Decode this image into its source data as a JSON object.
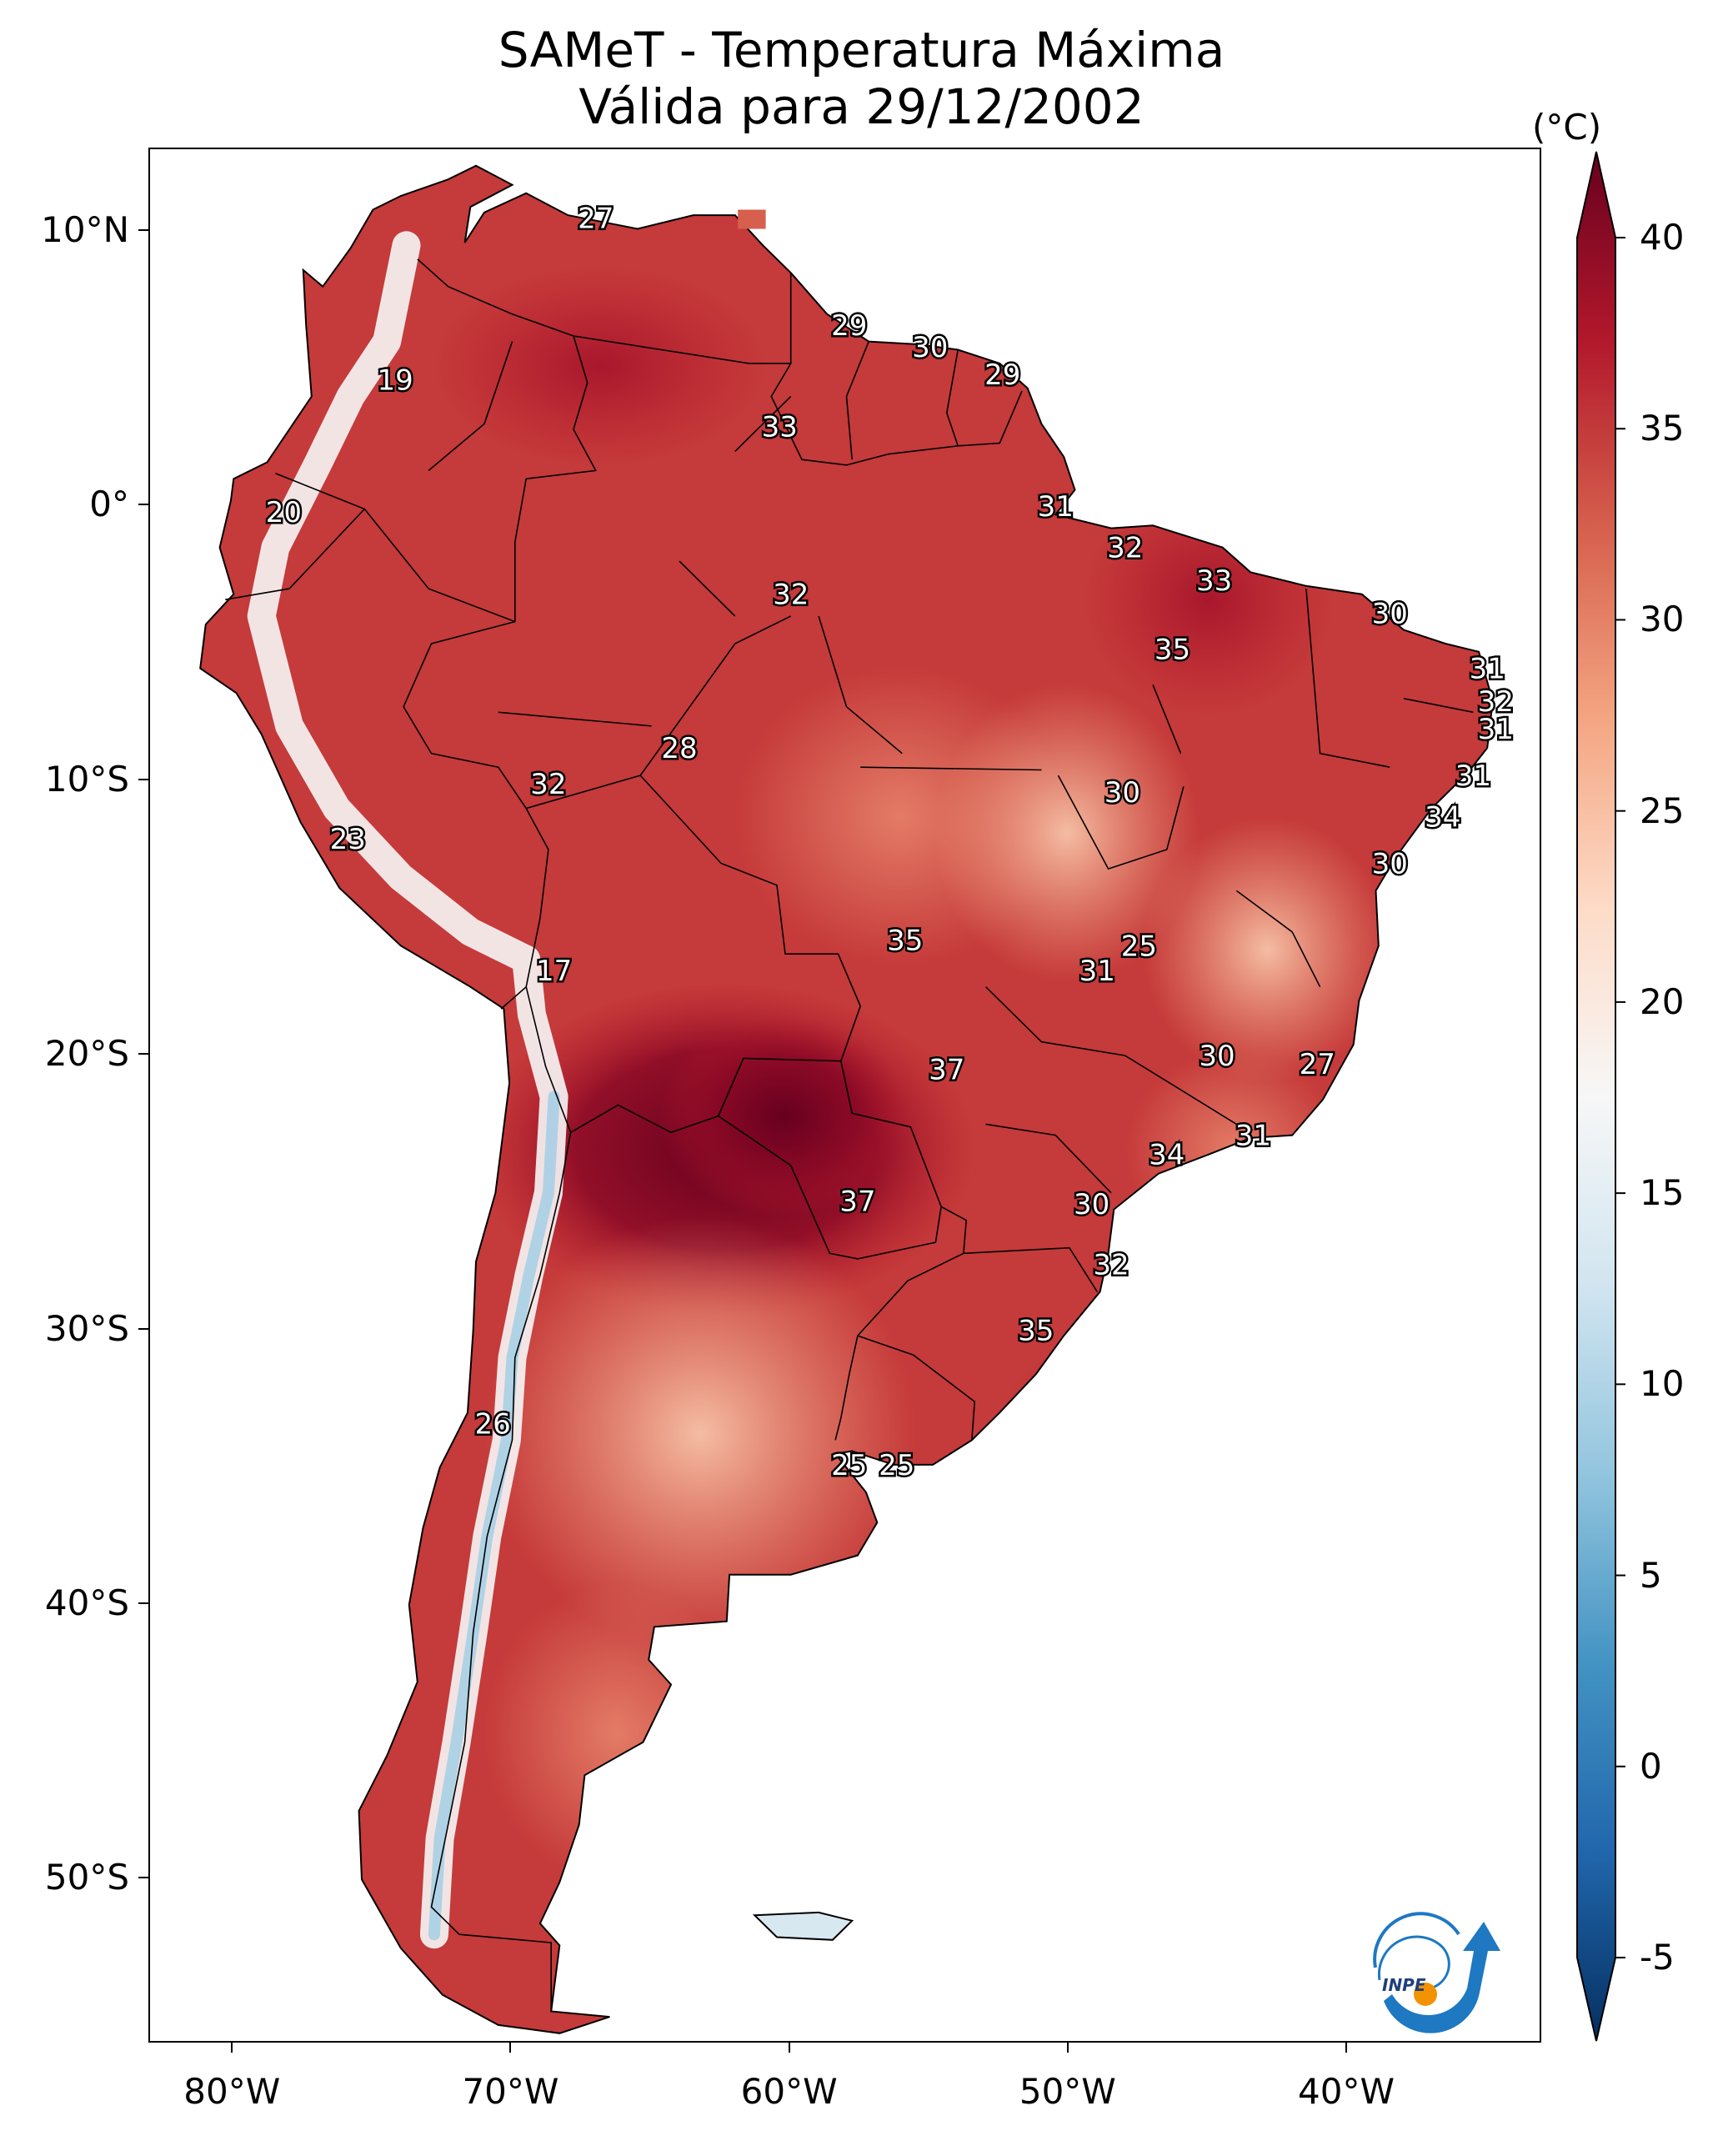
{
  "title": {
    "line1": "SAMeT - Temperatura Máxima",
    "line2": "Válida para 29/12/2002"
  },
  "map": {
    "type": "filled-temperature-map",
    "region": "South America",
    "lat_range": [
      -56,
      13
    ],
    "lon_range": [
      -83,
      -33
    ],
    "lat_ticks": [
      {
        "lat": 10,
        "label": "10°N"
      },
      {
        "lat": 0,
        "label": "0°"
      },
      {
        "lat": -10,
        "label": "10°S"
      },
      {
        "lat": -20,
        "label": "20°S"
      },
      {
        "lat": -30,
        "label": "30°S"
      },
      {
        "lat": -40,
        "label": "40°S"
      },
      {
        "lat": -50,
        "label": "50°S"
      }
    ],
    "lon_ticks": [
      {
        "lon": -80,
        "label": "80°W"
      },
      {
        "lon": -70,
        "label": "70°W"
      },
      {
        "lon": -60,
        "label": "60°W"
      },
      {
        "lon": -50,
        "label": "50°W"
      },
      {
        "lon": -40,
        "label": "40°W"
      }
    ],
    "contour_labels": [
      {
        "lat": 10.5,
        "lon": -67.0,
        "text": "27"
      },
      {
        "lat": 6.6,
        "lon": -57.9,
        "text": "29"
      },
      {
        "lat": 5.8,
        "lon": -55.0,
        "text": "30"
      },
      {
        "lat": 4.8,
        "lon": -52.4,
        "text": "29"
      },
      {
        "lat": 4.6,
        "lon": -74.2,
        "text": "19"
      },
      {
        "lat": 2.9,
        "lon": -60.4,
        "text": "33"
      },
      {
        "lat": 0.0,
        "lon": -50.5,
        "text": "31"
      },
      {
        "lat": -0.2,
        "lon": -78.2,
        "text": "20"
      },
      {
        "lat": -1.5,
        "lon": -48.0,
        "text": "32"
      },
      {
        "lat": -2.7,
        "lon": -44.8,
        "text": "33"
      },
      {
        "lat": -3.2,
        "lon": -60.0,
        "text": "32"
      },
      {
        "lat": -3.9,
        "lon": -38.5,
        "text": "30"
      },
      {
        "lat": -5.2,
        "lon": -46.3,
        "text": "35"
      },
      {
        "lat": -5.9,
        "lon": -35.0,
        "text": "31"
      },
      {
        "lat": -7.1,
        "lon": -34.7,
        "text": "32"
      },
      {
        "lat": -8.1,
        "lon": -34.7,
        "text": "31"
      },
      {
        "lat": -8.8,
        "lon": -64.0,
        "text": "28"
      },
      {
        "lat": -9.8,
        "lon": -35.5,
        "text": "31"
      },
      {
        "lat": -10.1,
        "lon": -68.7,
        "text": "32"
      },
      {
        "lat": -10.4,
        "lon": -48.1,
        "text": "30"
      },
      {
        "lat": -11.3,
        "lon": -36.6,
        "text": "34"
      },
      {
        "lat": -12.1,
        "lon": -75.9,
        "text": "23"
      },
      {
        "lat": -13.0,
        "lon": -38.5,
        "text": "30"
      },
      {
        "lat": -15.8,
        "lon": -55.9,
        "text": "35"
      },
      {
        "lat": -16.0,
        "lon": -47.5,
        "text": "25"
      },
      {
        "lat": -16.9,
        "lon": -49.0,
        "text": "31"
      },
      {
        "lat": -16.9,
        "lon": -68.5,
        "text": "17"
      },
      {
        "lat": -20.0,
        "lon": -44.7,
        "text": "30"
      },
      {
        "lat": -20.3,
        "lon": -41.1,
        "text": "27"
      },
      {
        "lat": -20.5,
        "lon": -54.4,
        "text": "37"
      },
      {
        "lat": -22.9,
        "lon": -43.4,
        "text": "31"
      },
      {
        "lat": -23.6,
        "lon": -46.5,
        "text": "34"
      },
      {
        "lat": -25.3,
        "lon": -57.6,
        "text": "37"
      },
      {
        "lat": -25.4,
        "lon": -49.2,
        "text": "30"
      },
      {
        "lat": -27.6,
        "lon": -48.5,
        "text": "32"
      },
      {
        "lat": -30.0,
        "lon": -51.2,
        "text": "35"
      },
      {
        "lat": -33.4,
        "lon": -70.7,
        "text": "26"
      },
      {
        "lat": -34.9,
        "lon": -56.2,
        "text": "25"
      },
      {
        "lat": -34.9,
        "lon": -57.9,
        "text": "25"
      }
    ]
  },
  "colorbar": {
    "unit": "(°C)",
    "range": [
      -5,
      40
    ],
    "ticks": [
      {
        "value": 40,
        "label": "40"
      },
      {
        "value": 35,
        "label": "35"
      },
      {
        "value": 30,
        "label": "30"
      },
      {
        "value": 25,
        "label": "25"
      },
      {
        "value": 20,
        "label": "20"
      },
      {
        "value": 15,
        "label": "15"
      },
      {
        "value": 10,
        "label": "10"
      },
      {
        "value": 5,
        "label": "5"
      },
      {
        "value": 0,
        "label": "0"
      },
      {
        "value": -5,
        "label": "-5"
      }
    ],
    "colors": [
      "#053061",
      "#2166ac",
      "#4393c3",
      "#92c5de",
      "#d1e5f0",
      "#f7f7f7",
      "#fddbc7",
      "#f4a582",
      "#d6604d",
      "#b2182b",
      "#67001f"
    ]
  },
  "logo": {
    "text": "INPE",
    "arc_color": "#1e78c2",
    "dot_color": "#f39200"
  }
}
